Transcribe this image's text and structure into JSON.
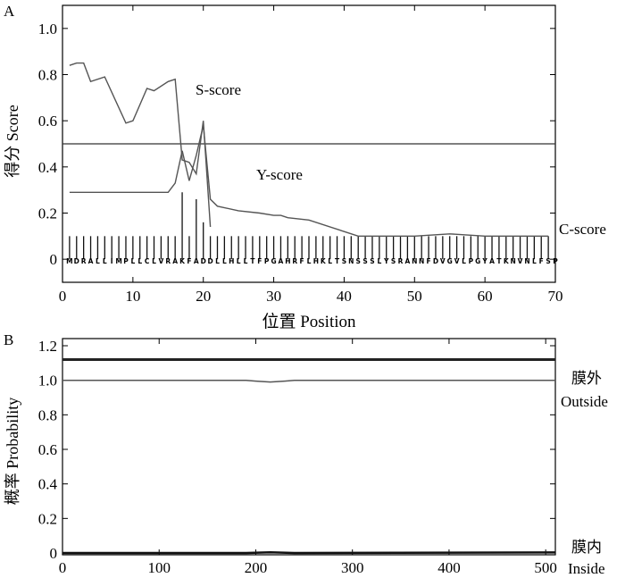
{
  "chart_data": [
    {
      "panel_label": "A",
      "type": "line",
      "xlabel": "位置 Position",
      "ylabel": "得分 Score",
      "xlim": [
        0,
        70
      ],
      "ylim": [
        -0.1,
        1.1
      ],
      "xticks": [
        "0",
        "10",
        "20",
        "30",
        "40",
        "50",
        "60",
        "70"
      ],
      "yticks": [
        "0",
        "0.2",
        "0.4",
        "0.6",
        "0.8",
        "1.0"
      ],
      "threshold": 0.5,
      "sequence": "MDRALLIMPLLCLVRAKFADDLLHLLTFPGAHRFLHKLTSNSSSLYSRANNFDVGVLPGYATKNVNLFSP",
      "series": [
        {
          "name": "S-score",
          "x": [
            1,
            2,
            3,
            4,
            6,
            9,
            10,
            12,
            13,
            15,
            16,
            17,
            18,
            19,
            20,
            21
          ],
          "values": [
            0.84,
            0.85,
            0.85,
            0.77,
            0.79,
            0.59,
            0.6,
            0.74,
            0.73,
            0.77,
            0.78,
            0.43,
            0.42,
            0.37,
            0.6,
            0.14
          ]
        },
        {
          "name": "Y-score",
          "x": [
            1,
            4,
            10,
            15,
            16,
            17,
            18,
            19,
            20,
            21,
            22,
            25,
            28,
            30,
            31,
            32,
            35,
            42,
            50,
            55,
            60,
            65,
            69
          ],
          "values": [
            0.29,
            0.29,
            0.29,
            0.29,
            0.33,
            0.47,
            0.34,
            0.45,
            0.58,
            0.26,
            0.23,
            0.21,
            0.2,
            0.19,
            0.19,
            0.18,
            0.17,
            0.1,
            0.1,
            0.11,
            0.1,
            0.1,
            0.1
          ]
        },
        {
          "name": "C-score",
          "x": [
            1,
            2,
            3,
            4,
            5,
            6,
            7,
            8,
            9,
            10,
            11,
            12,
            13,
            14,
            15,
            16,
            17,
            18,
            19,
            20,
            21,
            22,
            23,
            24,
            25,
            26,
            27,
            28,
            29,
            30,
            31,
            32,
            33,
            34,
            35,
            36,
            37,
            38,
            39,
            40,
            41,
            42,
            43,
            44,
            45,
            46,
            47,
            48,
            49,
            50,
            51,
            52,
            53,
            54,
            55,
            56,
            57,
            58,
            59,
            60,
            61,
            62,
            63,
            64,
            65,
            66,
            67,
            68,
            69
          ],
          "values": [
            0.1,
            0.1,
            0.1,
            0.1,
            0.1,
            0.1,
            0.1,
            0.1,
            0.1,
            0.1,
            0.1,
            0.1,
            0.1,
            0.1,
            0.1,
            0.1,
            0.29,
            0.1,
            0.26,
            0.16,
            0.1,
            0.1,
            0.1,
            0.1,
            0.1,
            0.1,
            0.1,
            0.1,
            0.1,
            0.1,
            0.1,
            0.1,
            0.1,
            0.1,
            0.1,
            0.1,
            0.1,
            0.1,
            0.1,
            0.1,
            0.1,
            0.1,
            0.1,
            0.1,
            0.1,
            0.1,
            0.1,
            0.1,
            0.1,
            0.1,
            0.1,
            0.1,
            0.1,
            0.1,
            0.1,
            0.1,
            0.1,
            0.1,
            0.1,
            0.1,
            0.1,
            0.1,
            0.1,
            0.1,
            0.1,
            0.1,
            0.1,
            0.1,
            0.1
          ]
        }
      ]
    },
    {
      "panel_label": "B",
      "type": "line",
      "xlabel": "",
      "ylabel": "概率 Probability",
      "xlim": [
        0,
        510
      ],
      "ylim": [
        0,
        1.2
      ],
      "xticks": [
        "0",
        "100",
        "200",
        "300",
        "400",
        "500"
      ],
      "yticks": [
        "0",
        "0.2",
        "0.4",
        "0.6",
        "0.8",
        "1.0",
        "1.2"
      ],
      "series": [
        {
          "name": "膜外 Outside",
          "x": [
            0,
            190,
            200,
            215,
            230,
            240,
            510
          ],
          "values": [
            1.0,
            1.0,
            0.995,
            0.99,
            0.995,
            1.0,
            1.0
          ]
        },
        {
          "name": "",
          "x": [
            0,
            510
          ],
          "values": [
            1.12,
            1.12
          ]
        },
        {
          "name": "膜内 Inside",
          "x": [
            0,
            190,
            215,
            240,
            510
          ],
          "values": [
            0.0,
            0.0,
            0.004,
            0.0,
            0.003
          ]
        }
      ],
      "right_labels": {
        "outside_cn": "膜外",
        "outside_en": "Outside",
        "inside_cn": "膜内",
        "inside_en": "Inside"
      }
    }
  ]
}
